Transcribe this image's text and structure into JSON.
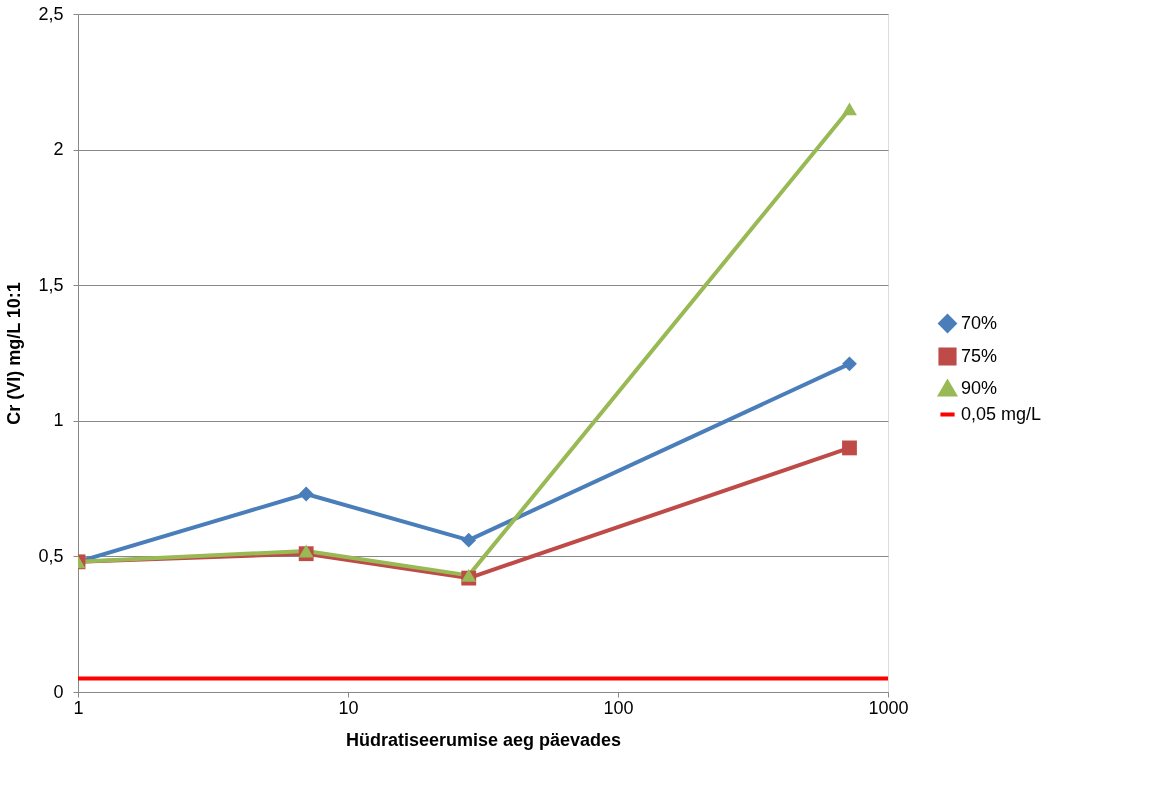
{
  "chart_data": {
    "type": "line",
    "xlabel": "Hüdratiseerumise aeg päevades",
    "ylabel": "Cr (VI) mg/L 10:1",
    "log": "x",
    "grid": "y",
    "legend": "right",
    "xlim": [
      1,
      1000
    ],
    "xticks": [
      1,
      10,
      100,
      1000
    ],
    "ylim": [
      0,
      2.5
    ],
    "yticks": [
      0,
      {
        "value": 0.5,
        "label": "0,5"
      },
      1,
      {
        "value": 1.5,
        "label": "1,5"
      },
      2,
      {
        "value": 2.5,
        "label": "2,5"
      }
    ],
    "series": [
      {
        "name": "70%",
        "color": "#4a7ebb",
        "marker": "diamond",
        "x": [
          1,
          7,
          28,
          720
        ],
        "values": [
          0.48,
          0.73,
          0.56,
          1.21
        ]
      },
      {
        "name": "75%",
        "color": "#be4b48",
        "marker": "square",
        "x": [
          1,
          7,
          28,
          720
        ],
        "values": [
          0.48,
          0.51,
          0.42,
          0.9
        ]
      },
      {
        "name": "90%",
        "color": "#98b954",
        "marker": "triangle",
        "x": [
          1,
          7,
          28,
          720
        ],
        "values": [
          0.48,
          0.52,
          0.43,
          2.15
        ]
      },
      {
        "name": "0,05 mg/L",
        "color": "#ff0000",
        "marker": "none",
        "x": [
          1,
          1000
        ],
        "values": [
          0.05,
          0.05
        ]
      }
    ]
  }
}
